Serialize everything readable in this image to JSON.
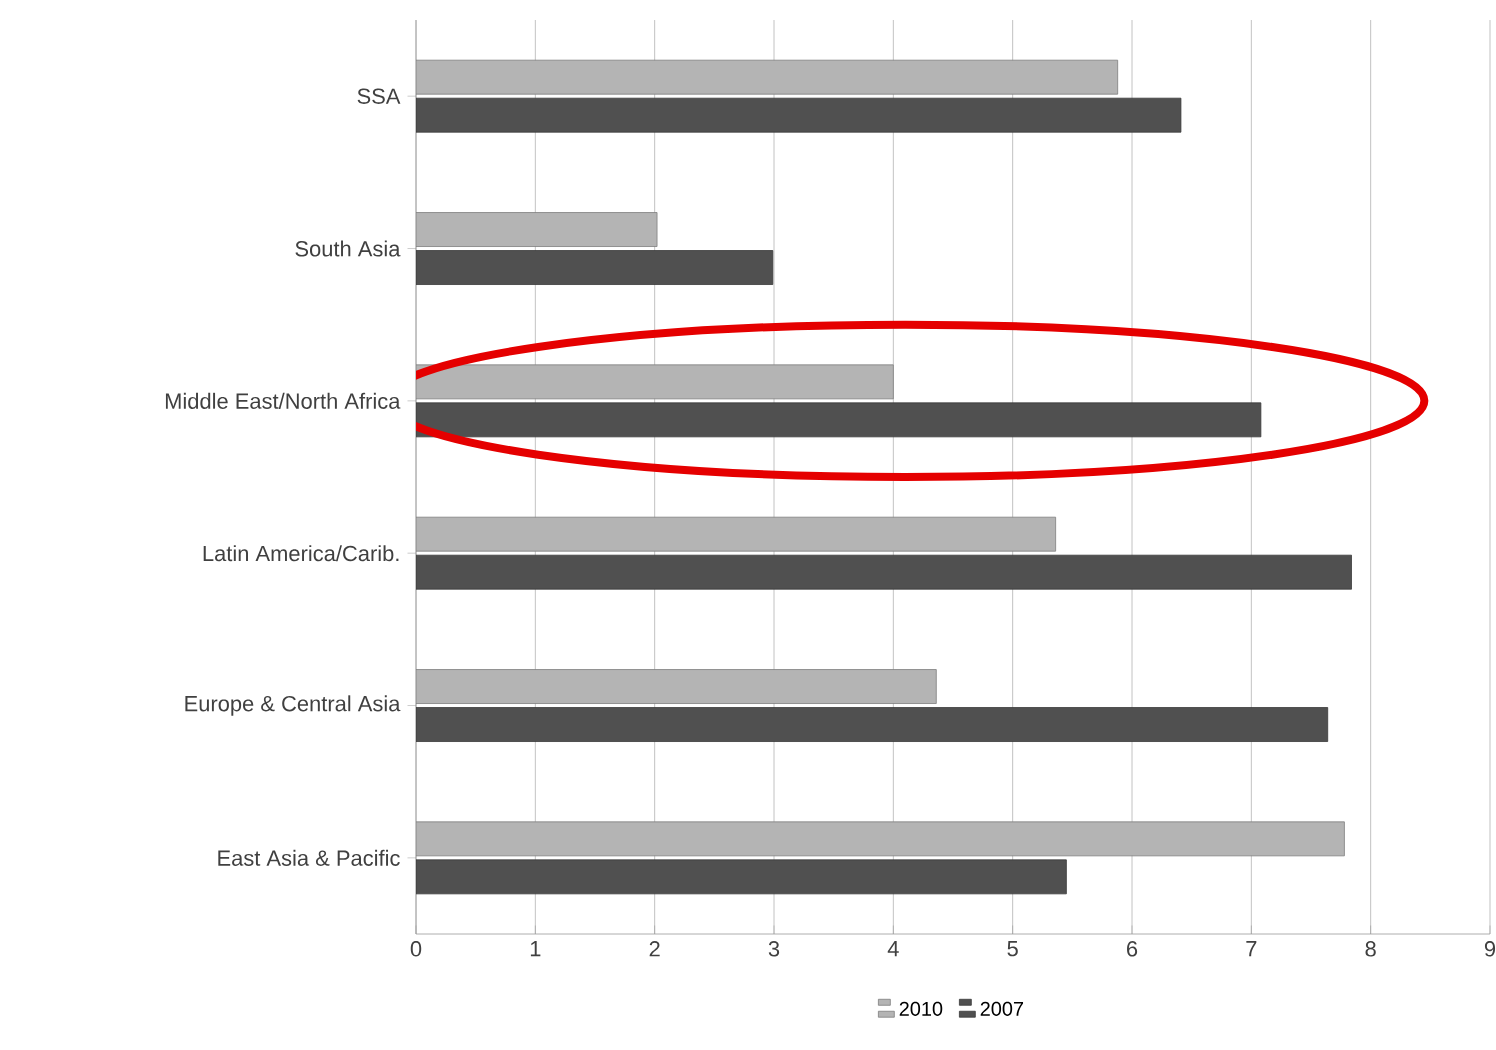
{
  "chart_data": {
    "type": "bar",
    "orientation": "horizontal",
    "categories": [
      "SSA",
      "South Asia",
      "Middle East/North Africa",
      "Latin America/Carib.",
      "Europe & Central Asia",
      "East Asia & Pacific"
    ],
    "series": [
      {
        "name": "2010",
        "color": "#b4b4b4",
        "values": [
          5.88,
          2.02,
          4.0,
          5.36,
          4.36,
          7.78
        ]
      },
      {
        "name": "2007",
        "color": "#505050",
        "values": [
          6.41,
          2.99,
          7.08,
          7.84,
          7.64,
          5.45
        ]
      }
    ],
    "xlim": [
      0,
      9
    ],
    "xticks": [
      0,
      1,
      2,
      3,
      4,
      5,
      6,
      7,
      8,
      9
    ],
    "grid": "x",
    "legend": "bottom"
  }
}
